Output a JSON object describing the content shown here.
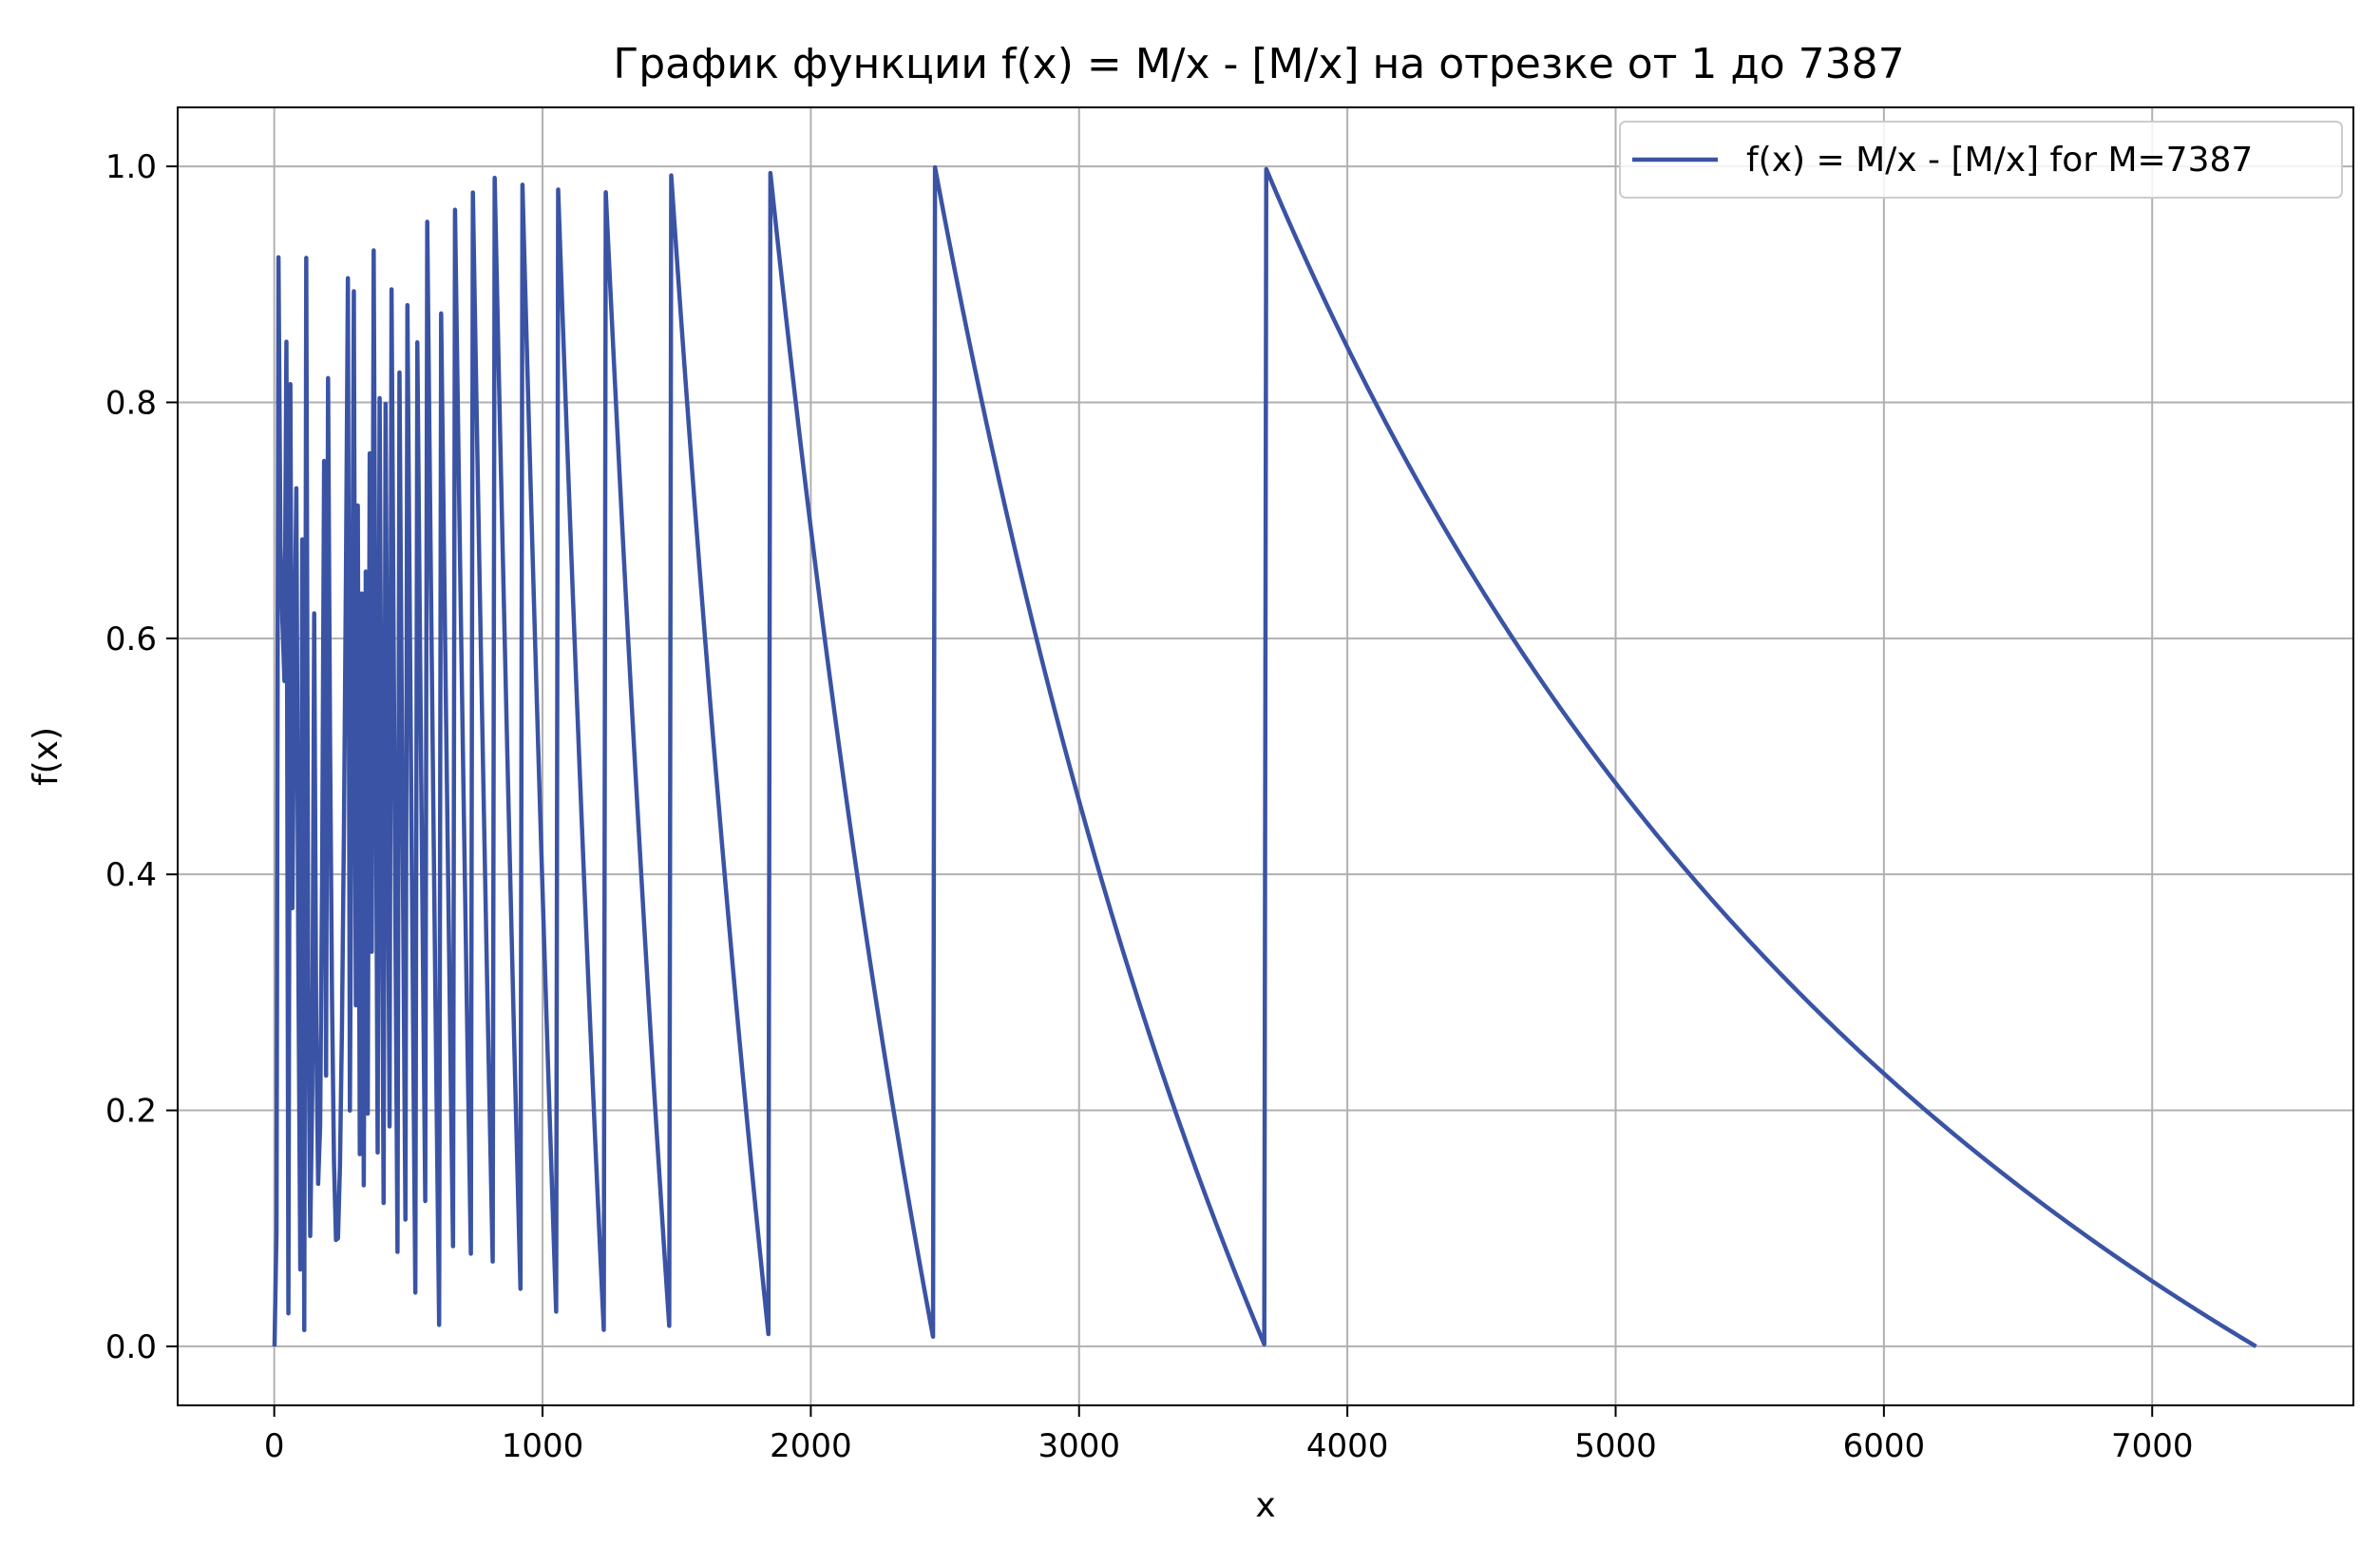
{
  "chart_data": {
    "type": "line",
    "title": "График функции f(x) = M/x - [M/x] на отрезке от 1 до 7387",
    "xlabel": "x",
    "ylabel": "f(x)",
    "M": 7387,
    "x_range": [
      1,
      7387
    ],
    "xlim": [
      -360,
      7750
    ],
    "ylim": [
      -0.05,
      1.05
    ],
    "x_ticks": [
      0,
      1000,
      2000,
      3000,
      4000,
      5000,
      6000,
      7000
    ],
    "y_ticks": [
      0.0,
      0.2,
      0.4,
      0.6,
      0.8,
      1.0
    ],
    "x_tick_labels": [
      "0",
      "1000",
      "2000",
      "3000",
      "4000",
      "5000",
      "6000",
      "7000"
    ],
    "y_tick_labels": [
      "0.0",
      "0.2",
      "0.4",
      "0.6",
      "0.8",
      "1.0"
    ],
    "grid": true,
    "legend_position": "top-right",
    "series": [
      {
        "name": "f(x) = M/x - [M/x] for M=7387",
        "color": "#3a53a4",
        "formula": "M/x - floor(M/x)",
        "sample_count": 1000
      }
    ]
  }
}
